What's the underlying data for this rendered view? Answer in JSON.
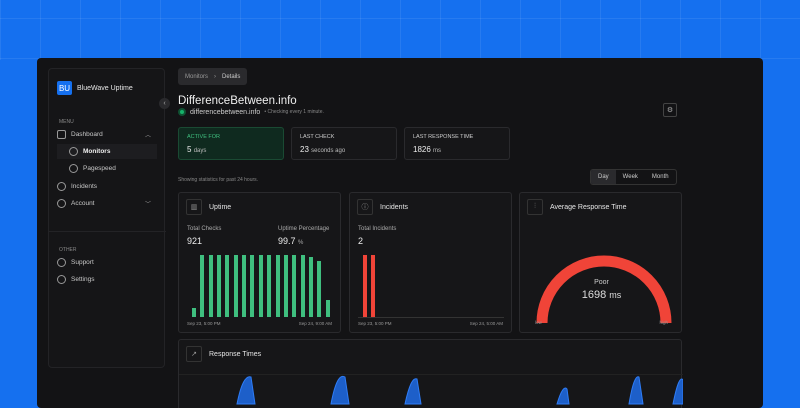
{
  "app": {
    "logo": "BU",
    "name": "BlueWave Uptime"
  },
  "sidebar": {
    "menu_label": "MENU",
    "other_label": "OTHER",
    "items": [
      {
        "label": "Dashboard",
        "icon": "home-icon"
      },
      {
        "label": "Monitors",
        "icon": "globe-icon"
      },
      {
        "label": "Pagespeed",
        "icon": "gauge-icon"
      },
      {
        "label": "Incidents",
        "icon": "alert-circle-icon"
      },
      {
        "label": "Account",
        "icon": "user-icon"
      }
    ],
    "other": [
      {
        "label": "Support",
        "icon": "lifebuoy-icon"
      },
      {
        "label": "Settings",
        "icon": "gear-icon"
      }
    ]
  },
  "breadcrumb": [
    "Monitors",
    "Details"
  ],
  "monitor": {
    "title": "DifferenceBetween.info",
    "url": "differencebetween.info",
    "interval": "• Checking every 1 minute.",
    "status_color": "#17b26a"
  },
  "stats": [
    {
      "label": "ACTIVE FOR",
      "value": "5",
      "unit": "days"
    },
    {
      "label": "LAST CHECK",
      "value": "23",
      "unit": "seconds ago"
    },
    {
      "label": "LAST RESPONSE TIME",
      "value": "1826",
      "unit": "ms"
    }
  ],
  "range_note": "Showing statistics for past 24 hours.",
  "ranges": [
    "Day",
    "Week",
    "Month"
  ],
  "selected_range": "Day",
  "uptime": {
    "title": "Uptime",
    "total_checks_label": "Total Checks",
    "total_checks": "921",
    "pct_label": "Uptime Percentage",
    "pct": "99.7",
    "pct_unit": "%",
    "start": "Sep 23, 5:00 PM",
    "end": "Sep 24, 9:00 AM",
    "bars": [
      0.15,
      1,
      1,
      1,
      1,
      1,
      1,
      1,
      1,
      1,
      1,
      1,
      1,
      1,
      0.97,
      0.9,
      0.28
    ],
    "color": "#3fbf7f"
  },
  "incidents": {
    "title": "Incidents",
    "total_label": "Total Incidents",
    "total": "2",
    "start": "Sep 23, 5:00 PM",
    "end": "Sep 24, 5:00 AM",
    "bars": [
      1,
      1
    ],
    "color": "#f04438"
  },
  "avg": {
    "title": "Average Response Time",
    "rating": "Poor",
    "value": "1698",
    "unit": "ms",
    "low": "low",
    "high": "high",
    "fill": 1,
    "color": "#f04438"
  },
  "response": {
    "title": "Response Times",
    "color": "#1570ef"
  }
}
